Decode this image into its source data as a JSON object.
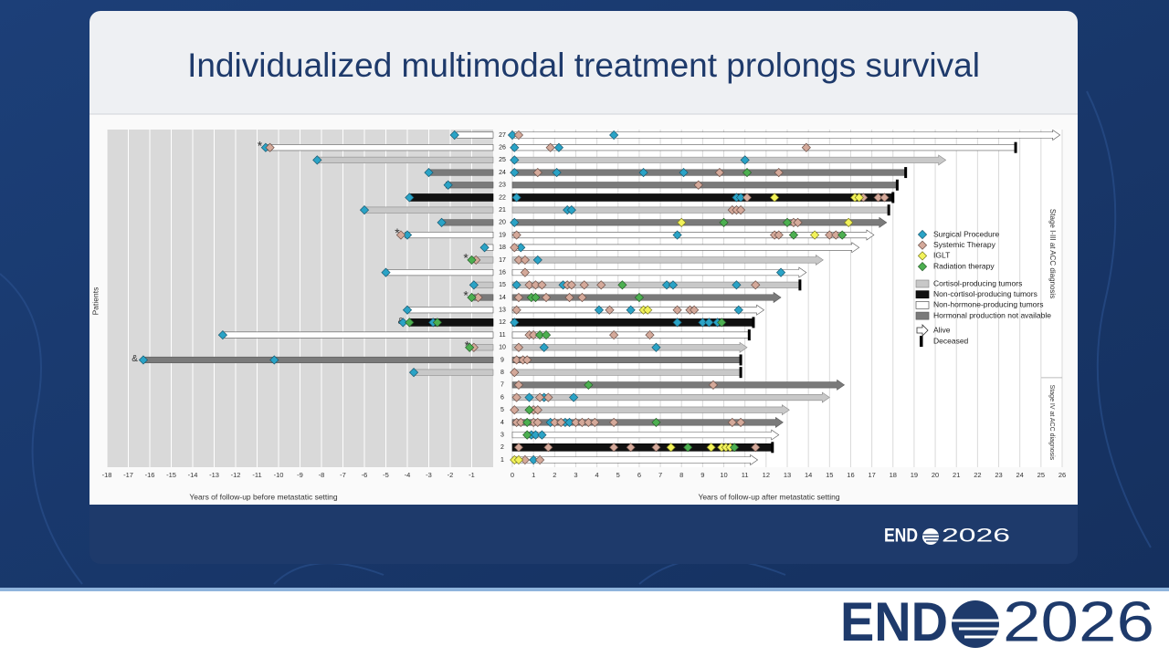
{
  "title": "Individualized multimodal treatment prolongs survival",
  "logo": {
    "left": "END",
    "right": "2026"
  },
  "chart_data": {
    "type": "swimmer",
    "y_label": "Patients",
    "categories": [
      "1",
      "2",
      "3",
      "4",
      "5",
      "6",
      "7",
      "8",
      "9",
      "10",
      "11",
      "12",
      "13",
      "14",
      "15",
      "16",
      "17",
      "18",
      "19",
      "20",
      "21",
      "22",
      "23",
      "24",
      "25",
      "26",
      "27"
    ],
    "panels": [
      {
        "x_label": "Years of follow-up before metastatic setting",
        "xlim": [
          -18,
          0
        ],
        "xticks": [
          -18,
          -17,
          -16,
          -15,
          -14,
          -13,
          -12,
          -11,
          -10,
          -9,
          -8,
          -7,
          -6,
          -5,
          -4,
          -3,
          -2,
          -1
        ],
        "background": "#d9d9d9",
        "grid_color": "#ffffff"
      },
      {
        "x_label": "Years of follow-up after metastatic setting",
        "xlim": [
          0,
          26
        ],
        "xticks": [
          0,
          1,
          2,
          3,
          4,
          5,
          6,
          7,
          8,
          9,
          10,
          11,
          12,
          13,
          14,
          15,
          16,
          17,
          18,
          19,
          20,
          21,
          22,
          23,
          24,
          25,
          26
        ],
        "background": "#ffffff",
        "grid_color": "#d9d9d9"
      }
    ],
    "start": [
      0,
      0,
      0,
      0,
      0,
      0,
      0,
      -3.7,
      -16.3,
      -0.85,
      -12.6,
      -3.9,
      -4.0,
      -0.9,
      -0.9,
      -5.0,
      -0.9,
      -0.4,
      -4.1,
      -2.4,
      -6.0,
      -3.9,
      -2.2,
      -3.0,
      -8.2,
      -10.5,
      -1.7
    ],
    "end": [
      11.6,
      12.3,
      12.6,
      12.8,
      13.1,
      15.0,
      15.7,
      10.8,
      10.8,
      11.1,
      11.2,
      11.4,
      11.9,
      12.7,
      13.6,
      13.9,
      14.7,
      16.4,
      17.1,
      17.7,
      17.8,
      18.0,
      18.2,
      18.6,
      20.5,
      23.8,
      25.9
    ],
    "alive": [
      true,
      false,
      true,
      true,
      true,
      true,
      true,
      false,
      false,
      true,
      false,
      false,
      true,
      true,
      false,
      true,
      true,
      true,
      true,
      true,
      false,
      false,
      false,
      false,
      true,
      false,
      true
    ],
    "flags": [
      null,
      null,
      null,
      null,
      null,
      null,
      null,
      null,
      "&",
      "*",
      null,
      "&",
      null,
      "*",
      null,
      null,
      "*",
      null,
      "*",
      null,
      null,
      null,
      null,
      null,
      null,
      "*",
      null
    ],
    "tumor_types": [
      {
        "name": "Cortisol-producing tumors",
        "fill": "#c8c8c8",
        "stroke": "#8a8a8a",
        "patients": [
          5,
          6,
          8,
          10,
          15,
          17,
          21,
          25
        ]
      },
      {
        "name": "Non-cortisol-producing tumors",
        "fill": "#111111",
        "stroke": "#000000",
        "patients": [
          2,
          12,
          22
        ]
      },
      {
        "name": "Non-hormone-producing tumors",
        "fill": "#ffffff",
        "stroke": "#555555",
        "patients": [
          1,
          3,
          11,
          13,
          16,
          18,
          19,
          26,
          27
        ]
      },
      {
        "name": "Hormonal production not available",
        "fill": "#7a7a7a",
        "stroke": "#5a5a5a",
        "patients": [
          4,
          7,
          9,
          14,
          20,
          23,
          24
        ]
      }
    ],
    "status_legend": [
      "Alive",
      "Deceased"
    ],
    "events": [
      {
        "name": "Surgical Procedure",
        "color": "#2aa3c6",
        "stroke": "#1a5a70",
        "x": [
          -1.8,
          0,
          4.8,
          -10.6,
          0.1,
          2.2,
          -8.2,
          0.1,
          11,
          -3.0,
          0.1,
          2.1,
          6.2,
          8.1,
          -2.1,
          -3.9,
          0.2,
          10.6,
          10.8,
          -6.0,
          2.6,
          2.8,
          -2.4,
          0.1,
          -4.0,
          7.8,
          -0.4,
          0.4,
          1.2,
          -5.0,
          12.7,
          -0.9,
          0.2,
          2.4,
          7.3,
          7.6,
          10.6,
          -4.0,
          4.1,
          5.6,
          10.7,
          -4.2,
          -2.8,
          0.1,
          7.8,
          9.0,
          9.3,
          9.7,
          -12.6,
          1.5,
          6.8,
          -16.3,
          -10.2,
          -3.7,
          0.8,
          1.5,
          2.9,
          1.8,
          2.5,
          2.7,
          0.9,
          1.1,
          1.4,
          1.0
        ],
        "patient": [
          27,
          27,
          27,
          26,
          26,
          26,
          25,
          25,
          25,
          24,
          24,
          24,
          24,
          24,
          23,
          22,
          22,
          22,
          22,
          21,
          21,
          21,
          20,
          20,
          19,
          19,
          18,
          18,
          17,
          16,
          16,
          15,
          15,
          15,
          15,
          15,
          15,
          13,
          13,
          13,
          13,
          12,
          12,
          12,
          12,
          12,
          12,
          12,
          11,
          10,
          10,
          9,
          9,
          8,
          6,
          6,
          6,
          4,
          4,
          4,
          3,
          3,
          3,
          1
        ]
      },
      {
        "name": "Systemic Therapy",
        "color": "#d4a99a",
        "stroke": "#6b5048",
        "x": [
          0.3,
          -10.4,
          1.8,
          13.9,
          1.2,
          9.8,
          12.6,
          8.8,
          11.1,
          16.6,
          17.3,
          17.6,
          10.4,
          10.6,
          10.8,
          13.3,
          13.5,
          -4.3,
          0.2,
          12.4,
          12.6,
          15.0,
          15.3,
          0.1,
          -0.8,
          0.3,
          0.6,
          0.6,
          0.8,
          1.1,
          1.4,
          2.6,
          2.8,
          3.4,
          4.2,
          11.5,
          -0.7,
          0.3,
          1.6,
          2.7,
          3.3,
          0.2,
          4.6,
          7.8,
          8.4,
          8.6,
          0.8,
          1.0,
          4.8,
          6.5,
          -0.9,
          0.3,
          0.2,
          0.5,
          0.7,
          0.1,
          0.3,
          9.5,
          0.2,
          1.3,
          1.7,
          0.1,
          1.0,
          1.2,
          0.2,
          0.4,
          1.0,
          1.2,
          2.0,
          2.3,
          3.0,
          3.3,
          3.6,
          3.9,
          4.8,
          10.4,
          10.8,
          0.3,
          1.7,
          4.8,
          5.6,
          6.8,
          11.5,
          0.6,
          1.3
        ],
        "patient": [
          27,
          26,
          26,
          26,
          24,
          24,
          24,
          23,
          22,
          22,
          22,
          22,
          21,
          21,
          21,
          20,
          20,
          19,
          19,
          19,
          19,
          19,
          19,
          18,
          17,
          17,
          17,
          16,
          15,
          15,
          15,
          15,
          15,
          15,
          15,
          15,
          14,
          14,
          14,
          14,
          14,
          13,
          13,
          13,
          13,
          13,
          11,
          11,
          11,
          11,
          10,
          10,
          9,
          9,
          9,
          8,
          7,
          7,
          6,
          6,
          6,
          5,
          5,
          5,
          4,
          4,
          4,
          4,
          4,
          4,
          4,
          4,
          4,
          4,
          4,
          4,
          4,
          2,
          2,
          2,
          2,
          2,
          2,
          1,
          1
        ]
      },
      {
        "name": "IGLT",
        "color": "#f2f25a",
        "stroke": "#7a7a20",
        "x": [
          12.4,
          16.2,
          16.4,
          8.0,
          15.9,
          14.3,
          6.2,
          6.4,
          7.5,
          9.4,
          9.9,
          10.1,
          10.3,
          0.1,
          0.3
        ],
        "patient": [
          22,
          22,
          22,
          20,
          20,
          19,
          13,
          13,
          2,
          2,
          2,
          2,
          2,
          1,
          1
        ]
      },
      {
        "name": "Radiation therapy",
        "color": "#4caf50",
        "stroke": "#2a5e2c",
        "x": [
          11.1,
          10.0,
          13.0,
          13.3,
          15.6,
          -1.0,
          5.2,
          -1.0,
          0.9,
          1.1,
          6.0,
          -3.9,
          -2.6,
          9.9,
          1.3,
          1.6,
          -1.1,
          3.6,
          0.8,
          0.7,
          6.8,
          0.7,
          8.3,
          10.5
        ],
        "patient": [
          24,
          20,
          20,
          19,
          19,
          17,
          15,
          14,
          14,
          14,
          14,
          12,
          12,
          12,
          11,
          11,
          10,
          7,
          5,
          4,
          4,
          3,
          2,
          2
        ]
      }
    ],
    "groups": [
      {
        "label": "Stage I-III at ACC diagnosis",
        "from": 8,
        "to": 27
      },
      {
        "label": "Stage IV at ACC diagnosis",
        "from": 1,
        "to": 7
      }
    ]
  }
}
